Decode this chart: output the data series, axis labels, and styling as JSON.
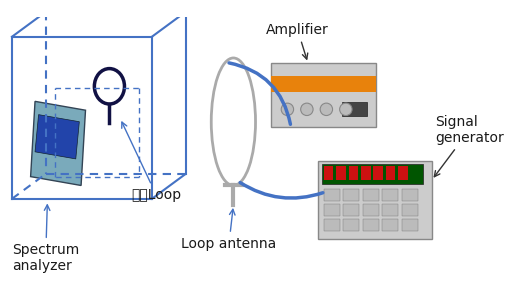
{
  "background_color": "#ffffff",
  "labels": {
    "amplifier": "Amplifier",
    "signal_generator": "Signal\ngenerator",
    "spectrum_analyzer": "Spectrum\nanalyzer",
    "loop_small": "소형Loop",
    "loop_antenna": "Loop antenna"
  },
  "colors": {
    "box_edge": "#4472C4",
    "arrow": "#4472C4",
    "cable_color": "#4472C4",
    "amplifier_stripe": "#E8820C",
    "text_color": "#1a1a1a"
  }
}
